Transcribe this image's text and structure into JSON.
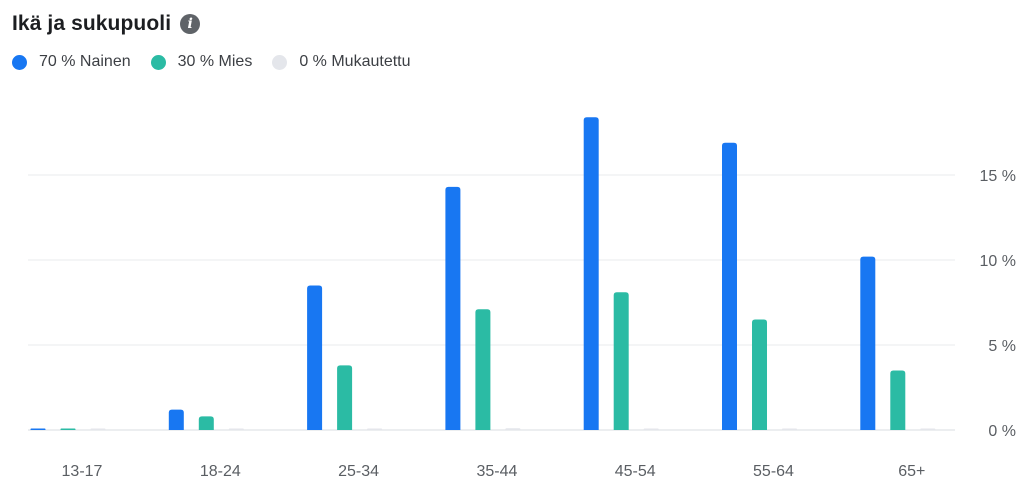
{
  "header": {
    "title": "Ikä ja sukupuoli",
    "info_icon": "info-icon"
  },
  "legend": [
    {
      "label": "70 % Nainen",
      "color": "#1877f2"
    },
    {
      "label": "30 % Mies",
      "color": "#2bbba4"
    },
    {
      "label": "0 % Mukautettu",
      "color": "#e4e6eb"
    }
  ],
  "chart_data": {
    "type": "bar",
    "title": "Ikä ja sukupuoli",
    "categories": [
      "13-17",
      "18-24",
      "25-34",
      "35-44",
      "45-54",
      "55-64",
      "65+"
    ],
    "series": [
      {
        "name": "Nainen",
        "color": "#1877f2",
        "values": [
          0.05,
          1.2,
          8.5,
          14.3,
          18.4,
          16.9,
          10.2
        ]
      },
      {
        "name": "Mies",
        "color": "#2bbba4",
        "values": [
          0.05,
          0.8,
          3.8,
          7.1,
          8.1,
          6.5,
          3.5
        ]
      },
      {
        "name": "Mukautettu",
        "color": "#e4e6eb",
        "values": [
          0.0,
          0.02,
          0.05,
          0.1,
          0.02,
          0.02,
          0.0
        ]
      }
    ],
    "y_ticks": [
      "0 %",
      "5 %",
      "10 %",
      "15 %"
    ],
    "y_tick_values": [
      0,
      5,
      10,
      15
    ],
    "ylim": [
      0,
      18.4
    ],
    "y_axis_side": "right",
    "grid": true,
    "legend_position": "top-left"
  }
}
